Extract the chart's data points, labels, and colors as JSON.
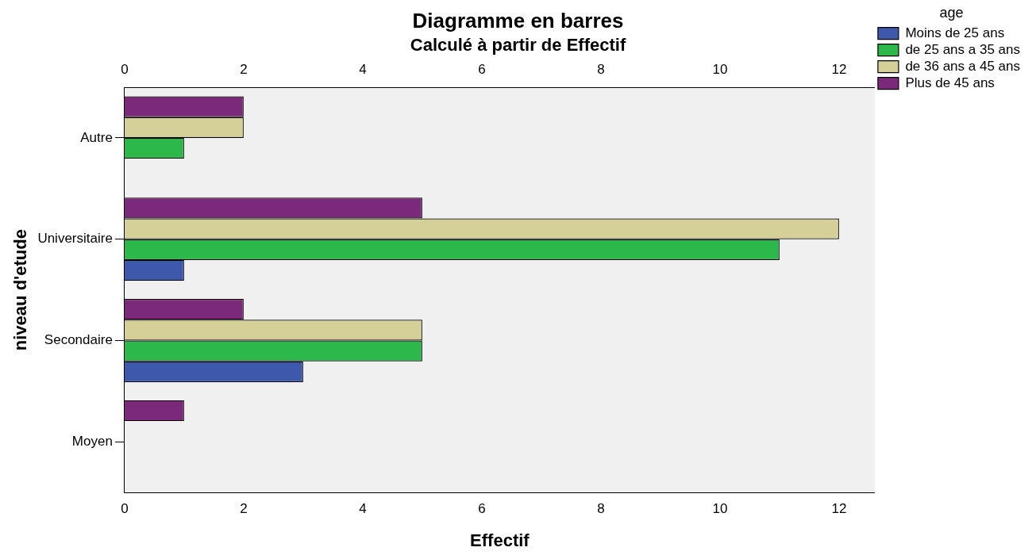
{
  "chart_data": {
    "type": "bar",
    "orientation": "horizontal",
    "title": "Diagramme en barres",
    "subtitle": "Calculé à partir de Effectif",
    "xlabel": "Effectif",
    "ylabel": "niveau d'etude",
    "legend_title": "age",
    "legend": "top right",
    "grid": false,
    "categories": [
      "Autre",
      "Universitaire",
      "Secondaire",
      "Moyen"
    ],
    "series": [
      {
        "name": "Moins de 25 ans",
        "color": "#3e58ac",
        "values": [
          null,
          1,
          3,
          null
        ]
      },
      {
        "name": "de 25 ans a 35 ans",
        "color": "#2db84a",
        "values": [
          1,
          11,
          5,
          null
        ]
      },
      {
        "name": "de 36 ans a 45 ans",
        "color": "#d5cf98",
        "values": [
          2,
          12,
          5,
          null
        ]
      },
      {
        "name": "Plus de 45 ans",
        "color": "#7b2a7b",
        "values": [
          2,
          5,
          2,
          1
        ]
      }
    ],
    "xlim": [
      0,
      12.6
    ],
    "xticks": [
      0,
      2,
      4,
      6,
      8,
      10,
      12
    ],
    "x2lim": [
      0,
      12.6
    ],
    "x2ticks": [
      0,
      2,
      4,
      6,
      8,
      10,
      12
    ]
  }
}
